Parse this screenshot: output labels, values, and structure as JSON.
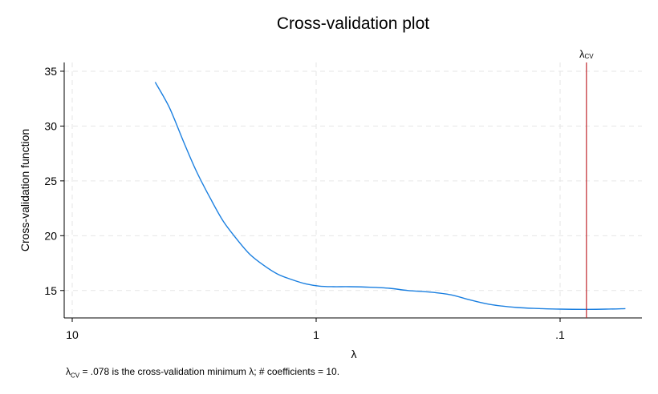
{
  "chart_data": {
    "type": "line",
    "title": "Cross-validation plot",
    "xlabel": "λ",
    "ylabel": "Cross-validation function",
    "x_scale": "log-reversed",
    "xlim": [
      10,
      0.05
    ],
    "ylim": [
      12.5,
      35.8
    ],
    "x_ticks": [
      10,
      1,
      0.1
    ],
    "x_tick_labels": [
      "10",
      "1",
      ".1"
    ],
    "y_ticks": [
      15,
      20,
      25,
      30,
      35
    ],
    "y_tick_labels": [
      "15",
      "20",
      "25",
      "30",
      "35"
    ],
    "grid": true,
    "series": [
      {
        "color": "#1a7fe0",
        "points": [
          [
            4.57,
            34.0
          ],
          [
            4.0,
            31.7
          ],
          [
            3.5,
            28.6
          ],
          [
            3.1,
            25.9
          ],
          [
            2.7,
            23.3
          ],
          [
            2.4,
            21.3
          ],
          [
            2.1,
            19.6
          ],
          [
            1.87,
            18.3
          ],
          [
            1.64,
            17.3
          ],
          [
            1.44,
            16.5
          ],
          [
            1.26,
            16.0
          ],
          [
            1.1,
            15.6
          ],
          [
            0.97,
            15.4
          ],
          [
            0.85,
            15.35
          ],
          [
            0.73,
            15.35
          ],
          [
            0.6,
            15.3
          ],
          [
            0.5,
            15.2
          ],
          [
            0.42,
            15.0
          ],
          [
            0.34,
            14.85
          ],
          [
            0.28,
            14.6
          ],
          [
            0.23,
            14.1
          ],
          [
            0.19,
            13.7
          ],
          [
            0.15,
            13.45
          ],
          [
            0.12,
            13.35
          ],
          [
            0.1,
            13.3
          ],
          [
            0.078,
            13.28
          ],
          [
            0.065,
            13.3
          ],
          [
            0.054,
            13.35
          ]
        ]
      }
    ],
    "reference_line": {
      "x": 0.078,
      "label": "λ",
      "label_sub": "CV",
      "color": "#c0282d"
    },
    "note": {
      "prefix": "λ",
      "sub": "CV",
      "text": " = .078 is the cross-validation minimum λ; # coefficients = 10."
    }
  }
}
